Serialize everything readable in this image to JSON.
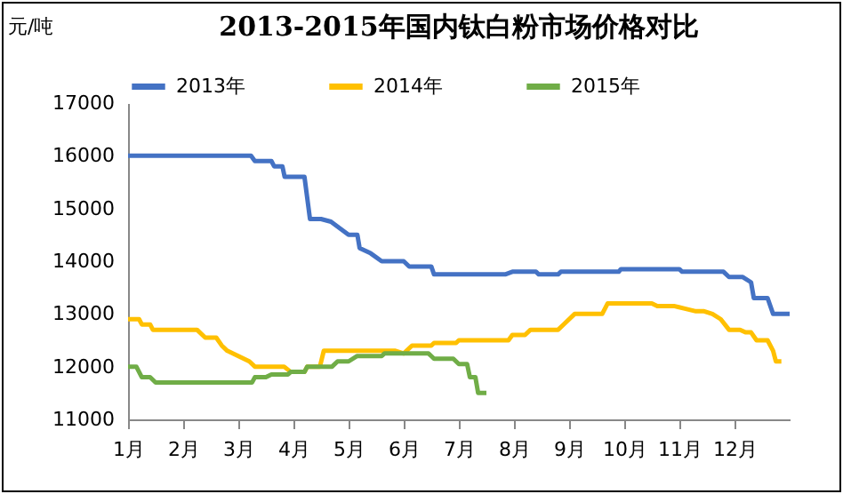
{
  "chart_data": {
    "type": "line",
    "title": "2013-2015年国内钛白粉市场价格对比",
    "ylabel": "元/吨",
    "xlim": [
      1,
      13
    ],
    "xticks": [
      {
        "value": 1,
        "label": "1月"
      },
      {
        "value": 2,
        "label": "2月"
      },
      {
        "value": 3,
        "label": "3月"
      },
      {
        "value": 4,
        "label": "4月"
      },
      {
        "value": 5,
        "label": "5月"
      },
      {
        "value": 6,
        "label": "6月"
      },
      {
        "value": 7,
        "label": "7月"
      },
      {
        "value": 8,
        "label": "8月"
      },
      {
        "value": 9,
        "label": "9月"
      },
      {
        "value": 10,
        "label": "10月"
      },
      {
        "value": 11,
        "label": "11月"
      },
      {
        "value": 12,
        "label": "12月"
      }
    ],
    "ylim": [
      11000,
      17000
    ],
    "yticks": [
      11000,
      12000,
      13000,
      14000,
      15000,
      16000,
      17000
    ],
    "grid": false,
    "legend": "top",
    "marker": "none",
    "line_style": "solid",
    "series": [
      {
        "name": "2013年",
        "color": "#4472c4",
        "x": [
          1,
          3.23,
          3.3,
          3.6,
          3.65,
          3.8,
          3.84,
          4.2,
          4.3,
          4.5,
          4.68,
          5.0,
          5.16,
          5.2,
          5.4,
          5.6,
          6.0,
          6.1,
          6.5,
          6.55,
          7.84,
          7.97,
          8.4,
          8.45,
          8.8,
          8.85,
          9.9,
          9.94,
          11.0,
          11.05,
          11.8,
          11.9,
          12.15,
          12.3,
          12.35,
          12.6,
          12.7,
          13.0
        ],
        "values": [
          16000,
          16000,
          15900,
          15900,
          15800,
          15800,
          15600,
          15600,
          14800,
          14800,
          14750,
          14500,
          14500,
          14250,
          14150,
          14000,
          14000,
          13900,
          13900,
          13750,
          13750,
          13800,
          13800,
          13750,
          13750,
          13800,
          13800,
          13850,
          13850,
          13800,
          13800,
          13700,
          13700,
          13600,
          13300,
          13300,
          13000,
          13000
        ]
      },
      {
        "name": "2014年",
        "color": "#ffc000",
        "x": [
          1,
          1.2,
          1.25,
          1.4,
          1.45,
          2.25,
          2.4,
          2.6,
          2.7,
          2.8,
          3.0,
          3.2,
          3.3,
          3.83,
          3.95,
          4.2,
          4.25,
          4.48,
          4.55,
          5.85,
          6.0,
          6.15,
          6.5,
          6.55,
          6.95,
          7.0,
          7.9,
          7.97,
          8.2,
          8.3,
          8.8,
          8.9,
          9.1,
          9.6,
          9.7,
          10.5,
          10.6,
          10.9,
          11.1,
          11.3,
          11.45,
          11.6,
          11.75,
          11.9,
          12.1,
          12.2,
          12.3,
          12.4,
          12.6,
          12.7,
          12.75,
          12.85
        ],
        "values": [
          12900,
          12900,
          12800,
          12800,
          12700,
          12700,
          12550,
          12550,
          12400,
          12300,
          12200,
          12100,
          12000,
          12000,
          11900,
          11900,
          12000,
          12000,
          12300,
          12300,
          12250,
          12400,
          12400,
          12450,
          12450,
          12500,
          12500,
          12600,
          12600,
          12700,
          12700,
          12800,
          13000,
          13000,
          13200,
          13200,
          13150,
          13150,
          13100,
          13050,
          13050,
          13000,
          12900,
          12700,
          12700,
          12650,
          12650,
          12500,
          12500,
          12300,
          12100,
          12100
        ]
      },
      {
        "name": "2015年",
        "color": "#70ad47",
        "x": [
          1,
          1.15,
          1.25,
          1.4,
          1.5,
          3.25,
          3.3,
          3.5,
          3.6,
          3.9,
          3.95,
          4.2,
          4.25,
          4.7,
          4.8,
          5.0,
          5.15,
          5.6,
          5.65,
          6.45,
          6.5,
          6.55,
          6.9,
          7.0,
          7.15,
          7.2,
          7.3,
          7.35,
          7.5
        ],
        "values": [
          12000,
          12000,
          11800,
          11800,
          11700,
          11700,
          11800,
          11800,
          11850,
          11850,
          11900,
          11900,
          12000,
          12000,
          12100,
          12100,
          12200,
          12200,
          12250,
          12250,
          12200,
          12150,
          12150,
          12050,
          12050,
          11800,
          11800,
          11500,
          11500
        ]
      }
    ]
  }
}
